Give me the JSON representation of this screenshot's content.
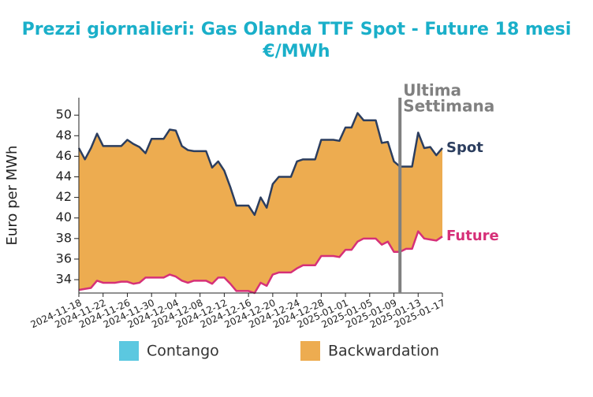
{
  "chart_data": {
    "type": "area_between",
    "title": "Prezzi giornalieri: Gas Olanda TTF Spot - Future 18 mesi",
    "subtitle": "€/MWh",
    "ylabel": "Euro per MWh",
    "x": [
      "2024-11-18",
      "2024-11-19",
      "2024-11-20",
      "2024-11-21",
      "2024-11-22",
      "2024-11-23",
      "2024-11-24",
      "2024-11-25",
      "2024-11-26",
      "2024-11-27",
      "2024-11-28",
      "2024-11-29",
      "2024-11-30",
      "2024-12-01",
      "2024-12-02",
      "2024-12-03",
      "2024-12-04",
      "2024-12-05",
      "2024-12-06",
      "2024-12-07",
      "2024-12-08",
      "2024-12-09",
      "2024-12-10",
      "2024-12-11",
      "2024-12-12",
      "2024-12-13",
      "2024-12-14",
      "2024-12-15",
      "2024-12-16",
      "2024-12-17",
      "2024-12-18",
      "2024-12-19",
      "2024-12-20",
      "2024-12-21",
      "2024-12-22",
      "2024-12-23",
      "2024-12-24",
      "2024-12-25",
      "2024-12-26",
      "2024-12-27",
      "2024-12-28",
      "2024-12-29",
      "2024-12-30",
      "2024-12-31",
      "2025-01-01",
      "2025-01-02",
      "2025-01-03",
      "2025-01-04",
      "2025-01-05",
      "2025-01-06",
      "2025-01-07",
      "2025-01-08",
      "2025-01-09",
      "2025-01-10",
      "2025-01-11",
      "2025-01-12",
      "2025-01-13",
      "2025-01-14",
      "2025-01-15",
      "2025-01-16",
      "2025-01-17"
    ],
    "series": [
      {
        "name": "Spot",
        "color": "#2c3e5f",
        "values": [
          46.8,
          45.7,
          46.8,
          48.2,
          47.0,
          47.0,
          47.0,
          47.0,
          47.6,
          47.2,
          46.9,
          46.3,
          47.7,
          47.7,
          47.7,
          48.6,
          48.5,
          47.0,
          46.6,
          46.5,
          46.5,
          46.5,
          44.9,
          45.5,
          44.6,
          43.0,
          41.2,
          41.2,
          41.2,
          40.3,
          42.0,
          41.0,
          43.3,
          44.0,
          44.0,
          44.0,
          45.5,
          45.7,
          45.7,
          45.7,
          47.6,
          47.6,
          47.6,
          47.5,
          48.8,
          48.8,
          50.2,
          49.5,
          49.5,
          49.5,
          47.3,
          47.4,
          45.5,
          45.0,
          45.0,
          45.0,
          48.3,
          46.8,
          46.9,
          46.1,
          46.8
        ]
      },
      {
        "name": "Future",
        "color": "#d63078",
        "values": [
          33.0,
          33.1,
          33.2,
          33.9,
          33.7,
          33.7,
          33.7,
          33.8,
          33.8,
          33.6,
          33.7,
          34.2,
          34.2,
          34.2,
          34.2,
          34.5,
          34.3,
          33.9,
          33.7,
          33.9,
          33.9,
          33.9,
          33.6,
          34.2,
          34.2,
          33.6,
          32.9,
          32.9,
          32.9,
          32.7,
          33.7,
          33.4,
          34.5,
          34.7,
          34.7,
          34.7,
          35.1,
          35.4,
          35.4,
          35.4,
          36.3,
          36.3,
          36.3,
          36.2,
          36.9,
          36.9,
          37.7,
          38.0,
          38.0,
          38.0,
          37.4,
          37.7,
          36.7,
          36.7,
          37.0,
          37.0,
          38.7,
          38.0,
          37.9,
          37.8,
          38.2
        ]
      }
    ],
    "fills": [
      {
        "name": "Contango",
        "color": "#5bc8e0"
      },
      {
        "name": "Backwardation",
        "color": "#edac50"
      }
    ],
    "xlim": [
      "2024-11-18",
      "2025-01-17"
    ],
    "xticks": [
      "2024-11-18",
      "2024-11-22",
      "2024-11-26",
      "2024-11-30",
      "2024-12-04",
      "2024-12-08",
      "2024-12-12",
      "2024-12-16",
      "2024-12-20",
      "2024-12-24",
      "2024-12-28",
      "2025-01-01",
      "2025-01-05",
      "2025-01-09",
      "2025-01-13",
      "2025-01-17"
    ],
    "ylim": [
      32.7,
      51.7
    ],
    "yticks": [
      34,
      36,
      38,
      40,
      42,
      44,
      46,
      48,
      50
    ],
    "annotation": {
      "lines": [
        "Ultima",
        "Settimana"
      ],
      "x": "2025-01-10",
      "color": "#808080"
    }
  }
}
